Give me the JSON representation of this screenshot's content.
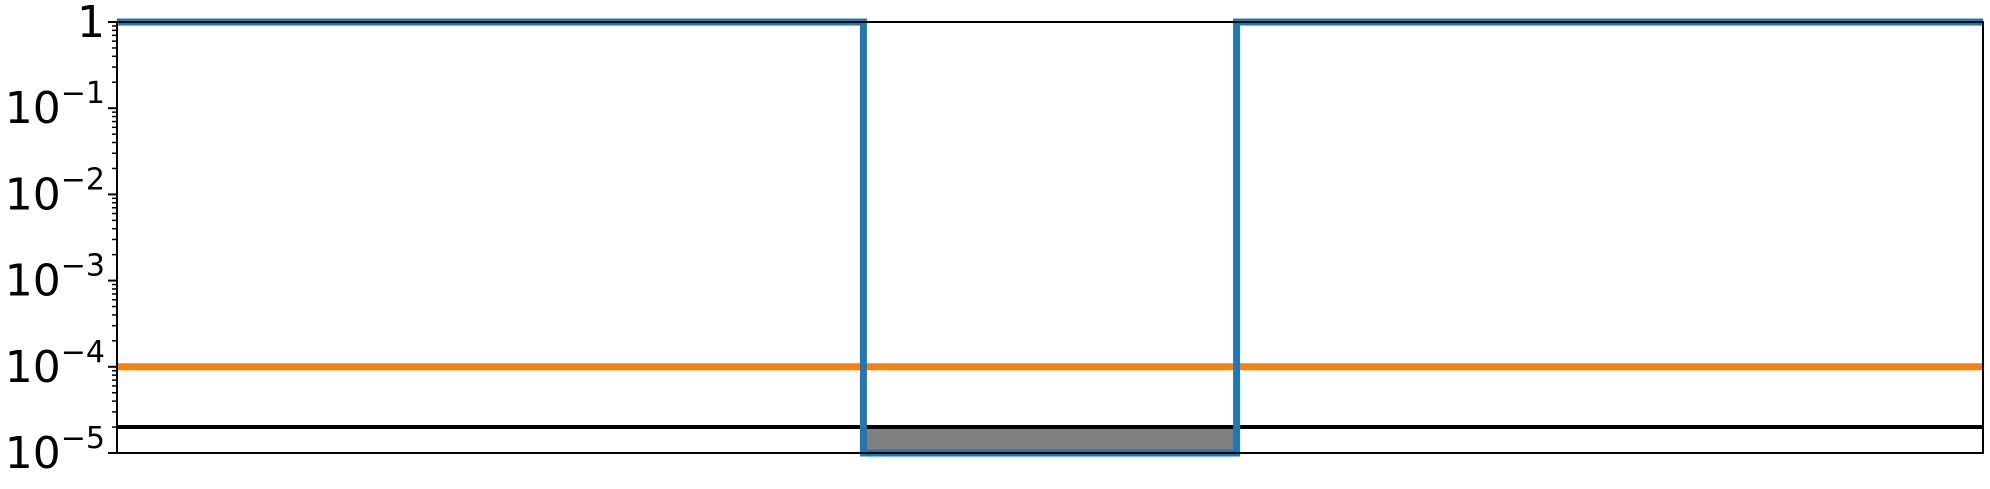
{
  "chart_data": {
    "type": "line",
    "x_range": [
      0,
      1
    ],
    "y_scale": "log",
    "ylim": [
      1e-05,
      1
    ],
    "grid": false,
    "y_ticks": [
      {
        "value": 1,
        "label": "1"
      },
      {
        "value": 0.1,
        "base": "10",
        "exp": "−1"
      },
      {
        "value": 0.01,
        "base": "10",
        "exp": "−2"
      },
      {
        "value": 0.001,
        "base": "10",
        "exp": "−3"
      },
      {
        "value": 0.0001,
        "base": "10",
        "exp": "−4"
      },
      {
        "value": 1e-05,
        "base": "10",
        "exp": "−5"
      }
    ],
    "series": [
      {
        "color": "#1f77b4",
        "points": [
          [
            0,
            1
          ],
          [
            0.4,
            1
          ],
          [
            0.4,
            1e-05
          ],
          [
            0.6,
            1e-05
          ],
          [
            0.6,
            1
          ],
          [
            1,
            1
          ]
        ]
      },
      {
        "color": "#ff7f0e",
        "points": [
          [
            0,
            0.0001
          ],
          [
            1,
            0.0001
          ]
        ]
      },
      {
        "color": "#000000",
        "points": [
          [
            0,
            2e-05
          ],
          [
            1,
            2e-05
          ]
        ]
      }
    ],
    "shaded_region": {
      "x": [
        0.4,
        0.6
      ],
      "y": [
        1e-05,
        2e-05
      ],
      "color": "#808080"
    }
  }
}
